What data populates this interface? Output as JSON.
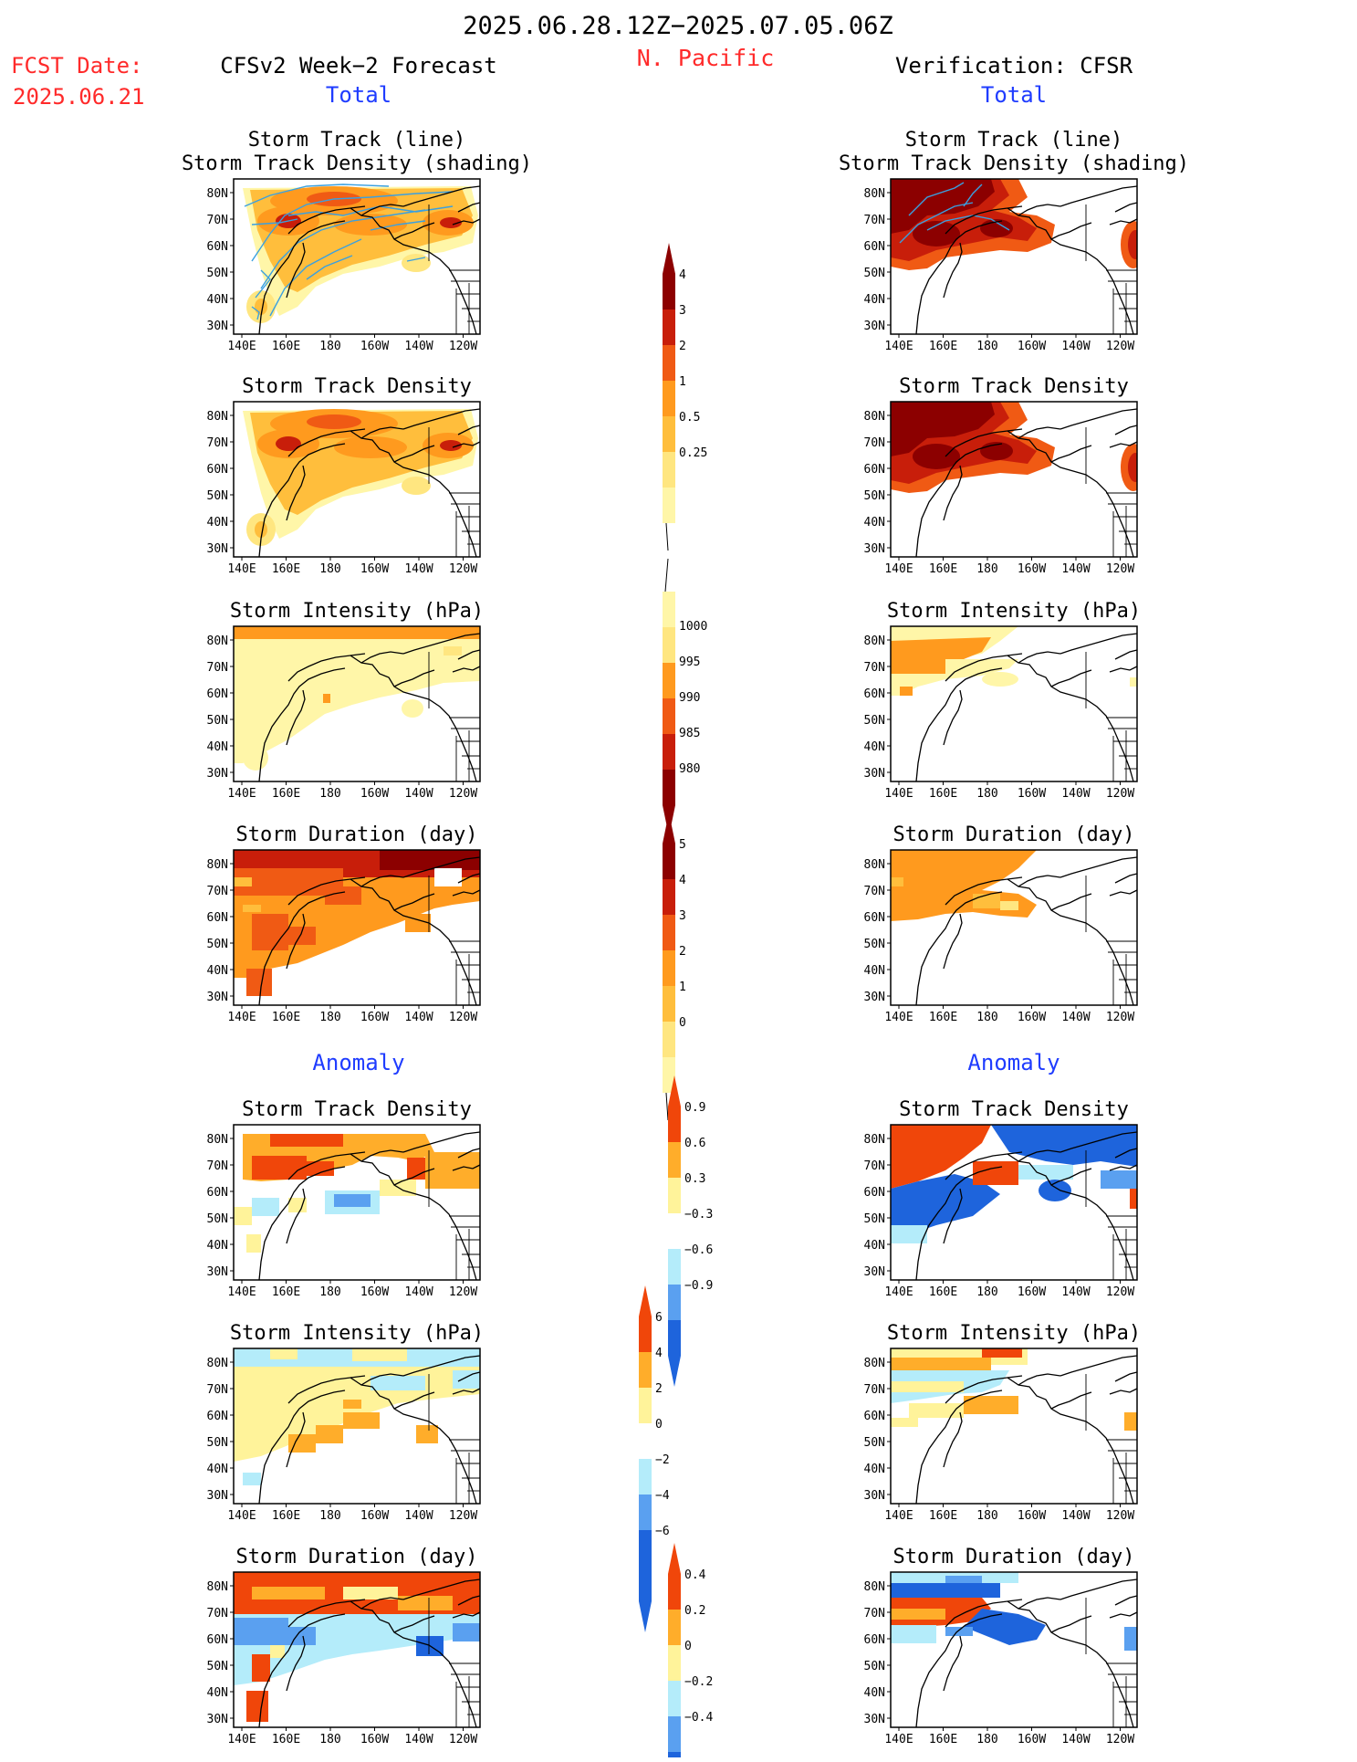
{
  "header": {
    "period": "2025.06.28.12Z−2025.07.05.06Z",
    "region": "N. Pacific",
    "fcst_date_label": "FCST Date:",
    "fcst_date_value": "2025.06.21",
    "model_title": "CFSv2 Week−2 Forecast",
    "verification_title": "Verification: CFSR"
  },
  "section_labels": {
    "total": "Total",
    "anomaly": "Anomaly"
  },
  "panel_titles": {
    "storm_track_line": "Storm Track (line)",
    "storm_track_density_shading": "Storm Track Density (shading)",
    "storm_track_density": "Storm Track Density",
    "storm_intensity": "Storm Intensity (hPa)",
    "storm_duration": "Storm Duration (day)"
  },
  "axes": {
    "lat_labels": [
      "80N",
      "70N",
      "60N",
      "50N",
      "40N",
      "30N"
    ],
    "lon_labels": [
      "140E",
      "160E",
      "180",
      "160W",
      "140W",
      "120W"
    ]
  },
  "colorbars": {
    "density": [
      "4",
      "3",
      "2",
      "1",
      "0.5",
      "0.25"
    ],
    "intensity": [
      "1000",
      "995",
      "990",
      "985",
      "980"
    ],
    "duration": [
      "5",
      "4",
      "3",
      "2",
      "1",
      "0"
    ],
    "density_anom": [
      "0.9",
      "0.6",
      "0.3",
      "−0.3",
      "−0.6",
      "−0.9"
    ],
    "intensity_anom": [
      "6",
      "4",
      "2",
      "0",
      "−2",
      "−4",
      "−6"
    ],
    "duration_anom": [
      "0.4",
      "0.2",
      "0",
      "−0.2",
      "−0.4"
    ]
  },
  "colors": {
    "title": "#000000",
    "red_text": "#ff2a2a",
    "blue_text": "#1f3cff",
    "track_line": "#3aa0e0",
    "warm_scale": [
      "#fff6a8",
      "#ffe680",
      "#ffbe3c",
      "#ff9a1e",
      "#f05a14",
      "#c81e0a",
      "#8c0000"
    ],
    "anom_scale": [
      "#1e64dc",
      "#5aa0f0",
      "#b4ecfa",
      "#ffffff",
      "#fff39a",
      "#ffad2a",
      "#f0460a"
    ]
  }
}
